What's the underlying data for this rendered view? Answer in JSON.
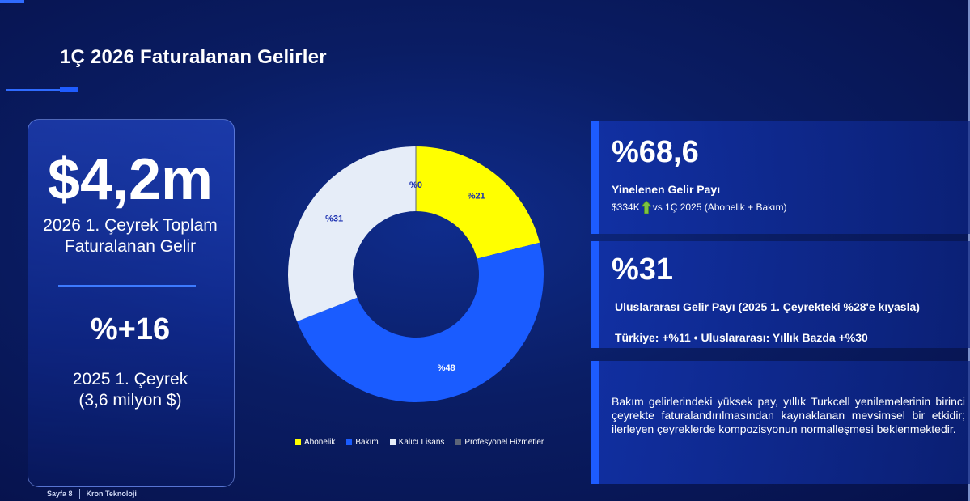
{
  "header": {
    "title": "1Ç 2026 Faturalanan Gelirler"
  },
  "left_card": {
    "value": "$4,2m",
    "label_line1": "2026 1. Çeyrek Toplam",
    "label_line2": "Faturalanan Gelir",
    "growth": "%+16",
    "prev_line1": "2025 1. Çeyrek",
    "prev_line2": "(3,6 milyon $)"
  },
  "chart_data": {
    "type": "pie",
    "donut": true,
    "categories": [
      "Abonelik",
      "Bakım",
      "Kalıcı Lisans",
      "Profesyonel Hizmetler"
    ],
    "values": [
      21,
      48,
      31,
      0
    ],
    "data_labels": [
      "%21",
      "%48",
      "%31",
      "%0"
    ],
    "colors": [
      "#ffff00",
      "#1a5cff",
      "#e6edf8",
      "#5c6478"
    ],
    "label_colors": [
      "#1a2fb0",
      "#ffffff",
      "#1a2fb0",
      "#1a2fb0"
    ],
    "legend_position": "bottom"
  },
  "panels": {
    "recurring": {
      "value": "%68,6",
      "title": "Yinelenen Gelir Payı",
      "amount": "$334K",
      "detail": "vs 1Ç 2025 (Abonelik + Bakım)",
      "icon": "up-arrow-icon",
      "icon_color": "#7cc242"
    },
    "international": {
      "value": "%31",
      "title": "Uluslararası Gelir Payı (2025 1. Çeyrekteki %28'e kıyasla)",
      "detail": "Türkiye: +%11 • Uluslararası: Yıllık Bazda +%30"
    },
    "note": {
      "text": "Bakım gelirlerindeki yüksek pay, yıllık Turkcell yenilemelerinin birinci çeyrekte faturalandırılmasından kaynaklanan mevsimsel bir etkidir; ilerleyen çeyreklerde kompozisyonun normalleşmesi beklenmektedir."
    }
  },
  "footer": {
    "page": "Sayfa 8",
    "company": "Kron Teknoloji"
  }
}
